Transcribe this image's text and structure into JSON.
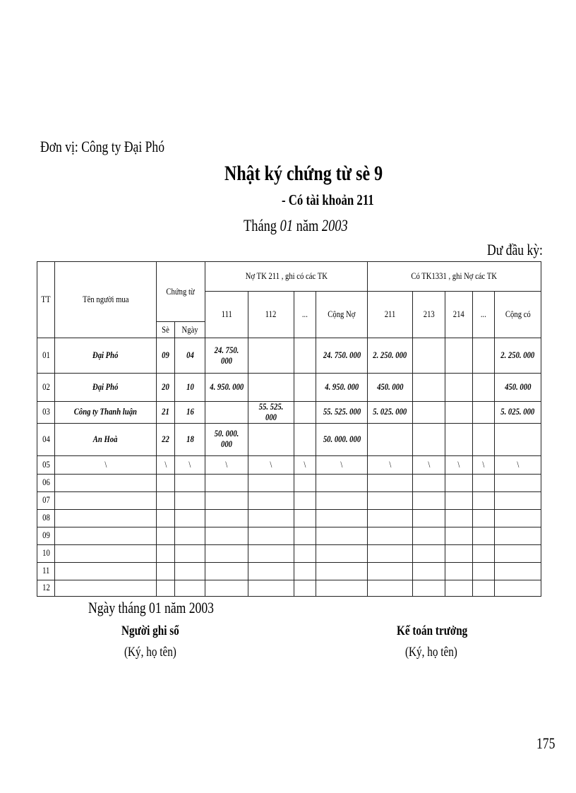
{
  "unit": "Đơn vị: Công ty Đại Phó",
  "title": "Nhật ký chứng từ sè 9",
  "subtitle": "- Có tài khoản 211",
  "month": {
    "prefix": "Tháng ",
    "month": "01",
    "mid": " năm ",
    "year": "2003"
  },
  "opening_balance": "Dư đầu kỳ:",
  "headers": {
    "tt": "TT",
    "name": "Tên người mua",
    "voucher": "Chứng từ",
    "voucher_no": "Sè",
    "voucher_date": "Ngày",
    "debit_group": "Nợ TK 211 , ghi có các TK",
    "credit_group": "Có TK1331 , ghi Nợ các TK",
    "debit_cols": [
      "111",
      "112",
      "...",
      "Cộng Nợ"
    ],
    "credit_cols": [
      "211",
      "213",
      "214",
      "...",
      "Cộng có"
    ]
  },
  "rows": [
    [
      "01",
      "Đại Phó",
      "09",
      "04",
      "24. 750. 000",
      "",
      "",
      "24. 750. 000",
      "2. 250. 000",
      "",
      "",
      "",
      "2. 250. 000"
    ],
    [
      "02",
      "Đại Phó",
      "20",
      "10",
      "4. 950. 000",
      "",
      "",
      "4. 950. 000",
      "450. 000",
      "",
      "",
      "",
      "450. 000"
    ],
    [
      "03",
      "Công ty Thanh luận",
      "21",
      "16",
      "",
      "55. 525. 000",
      "",
      "55. 525. 000",
      "5. 025. 000",
      "",
      "",
      "",
      "5. 025. 000"
    ],
    [
      "04",
      "An Hoà",
      "22",
      "18",
      "50. 000. 000",
      "",
      "",
      "50. 000. 000",
      "",
      "",
      "",
      "",
      ""
    ],
    [
      "05",
      "\\",
      "\\",
      "\\",
      "\\",
      "\\",
      "\\",
      "\\",
      "\\",
      "\\",
      "\\",
      "\\",
      "\\"
    ],
    [
      "06",
      "",
      "",
      "",
      "",
      "",
      "",
      "",
      "",
      "",
      "",
      "",
      ""
    ],
    [
      "07",
      "",
      "",
      "",
      "",
      "",
      "",
      "",
      "",
      "",
      "",
      "",
      ""
    ],
    [
      "08",
      "",
      "",
      "",
      "",
      "",
      "",
      "",
      "",
      "",
      "",
      "",
      ""
    ],
    [
      "09",
      "",
      "",
      "",
      "",
      "",
      "",
      "",
      "",
      "",
      "",
      "",
      ""
    ],
    [
      "10",
      "",
      "",
      "",
      "",
      "",
      "",
      "",
      "",
      "",
      "",
      "",
      ""
    ],
    [
      "11",
      "",
      "",
      "",
      "",
      "",
      "",
      "",
      "",
      "",
      "",
      "",
      ""
    ],
    [
      "12",
      "",
      "",
      "",
      "",
      "",
      "",
      "",
      "",
      "",
      "",
      "",
      ""
    ]
  ],
  "footer": {
    "date": "Ngày tháng 01 năm 2003",
    "recorder": "Người ghi sổ",
    "recorder_sign": "(Ký, họ tên)",
    "chief": "Kế toán trưởng",
    "chief_sign": "(Ký, họ tên)"
  },
  "page_number": "175"
}
